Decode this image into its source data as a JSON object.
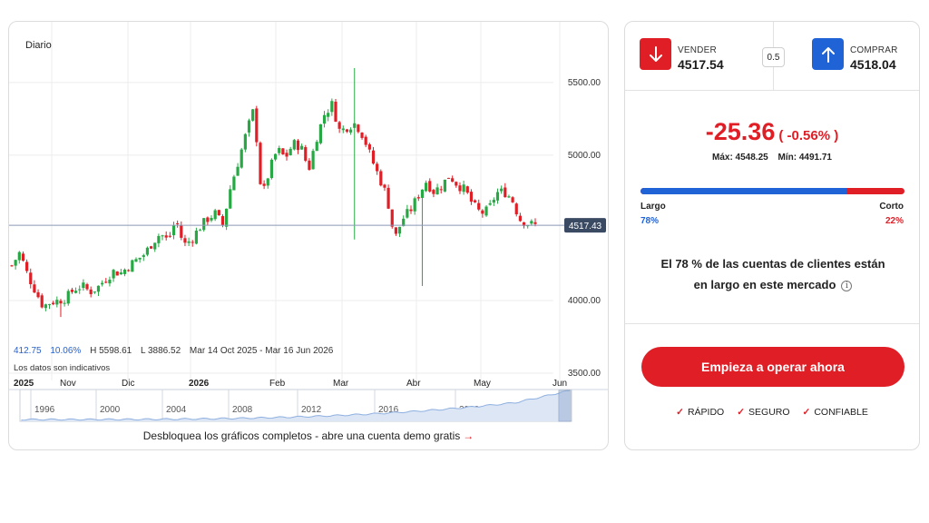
{
  "chart": {
    "period": "Diario",
    "stats": {
      "change": "412.75",
      "change_pct": "10.06%",
      "high": "H 5598.61",
      "low": "L 3886.52",
      "range": "Mar 14 Oct 2025 - Mar 16 Jun 2026"
    },
    "disclaimer": "Los datos son indicativos",
    "unlock_text": "Desbloquea los gráficos completos - abre una cuenta demo gratis",
    "unlock_arrow": "→",
    "colors": {
      "up": "#27a845",
      "down": "#e01e26",
      "current_line": "#8a99b8",
      "price_tag": "#3b4a63",
      "navigator_fill": "#dce6f5",
      "navigator_line": "#8fb0e0"
    }
  },
  "chart_data": {
    "type": "candlestick",
    "ylim": [
      3450,
      5780
    ],
    "y_ticks": [
      {
        "value": 5500,
        "label": "5500.00"
      },
      {
        "value": 5000,
        "label": "5000.00"
      },
      {
        "value": 4000,
        "label": "4000.00"
      },
      {
        "value": 3500,
        "label": "3500.00"
      }
    ],
    "current_price": {
      "value": 4517.43,
      "label": "4517.43"
    },
    "x_labels": [
      "2025",
      "Nov",
      "Dic",
      "2026",
      "Feb",
      "Mar",
      "Abr",
      "May",
      "Jun"
    ],
    "x_labels_bold": [
      "2025",
      "2026"
    ],
    "close_path": [
      4240,
      4330,
      4180,
      4070,
      3960,
      3990,
      4000,
      4020,
      4080,
      4100,
      4060,
      4090,
      4150,
      4200,
      4190,
      4240,
      4280,
      4320,
      4400,
      4460,
      4410,
      4560,
      4380,
      4420,
      4500,
      4560,
      4600,
      4520,
      4780,
      4960,
      5150,
      5320,
      4700,
      4900,
      5040,
      4980,
      5080,
      5060,
      4900,
      5120,
      5280,
      5350,
      5160,
      5200,
      5220,
      5130,
      4980,
      4850,
      4720,
      4420,
      4560,
      4620,
      4720,
      4820,
      4750,
      4790,
      4860,
      4800,
      4760,
      4660,
      4600,
      4620,
      4740,
      4750,
      4700,
      4560,
      4530,
      4517
    ],
    "highs": {
      "peak": 5598.61,
      "low": 3886.52
    },
    "navigator": {
      "years": [
        "1996",
        "2000",
        "2004",
        "2008",
        "2012",
        "2016",
        "2020"
      ]
    }
  },
  "trade": {
    "sell": {
      "label": "VENDER",
      "price": "4517.54"
    },
    "buy": {
      "label": "COMPRAR",
      "price": "4518.04"
    },
    "spread": "0.5",
    "change": "-25.36",
    "change_pct": "( -0.56% )",
    "high": "Máx: 4548.25",
    "low": "Mín: 4491.71",
    "long_label": "Largo",
    "short_label": "Corto",
    "long_pct_text": "78%",
    "short_pct_text": "22%",
    "long_fraction": 0.78,
    "sentiment_line1": "El 78 % de las cuentas de clientes están",
    "sentiment_line2": "en largo en este mercado",
    "info_icon": "i",
    "cta": "Empieza a operar ahora",
    "features": [
      "RÁPIDO",
      "SEGURO",
      "CONFIABLE"
    ],
    "tick_icon": "✓"
  }
}
